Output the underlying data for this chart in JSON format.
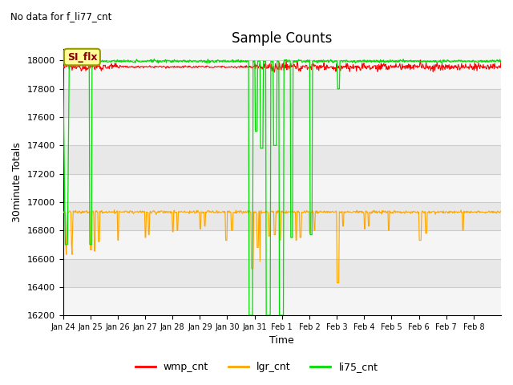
{
  "title": "Sample Counts",
  "subtitle": "No data for f_li77_cnt",
  "xlabel": "Time",
  "ylabel": "30minute Totals",
  "ylim": [
    16200,
    18080
  ],
  "wmp_color": "#ff0000",
  "lgr_color": "#ffa500",
  "li75_color": "#00dd00",
  "annotation_text": "SI_flx",
  "wmp_base": 17955,
  "lgr_base": 16930,
  "background_color": "#ffffff",
  "grid_color": "#cccccc",
  "band_color_light": "#f5f5f5",
  "band_color_dark": "#e8e8e8",
  "x_tick_labels": [
    "Jan 24",
    "Jan 25",
    "Jan 26",
    "Jan 27",
    "Jan 28",
    "Jan 29",
    "Jan 30",
    "Jan 31",
    "Feb 1",
    "Feb 2",
    "Feb 3",
    "Feb 4",
    "Feb 5",
    "Feb 6",
    "Feb 7",
    "Feb 8"
  ],
  "n_days": 16
}
